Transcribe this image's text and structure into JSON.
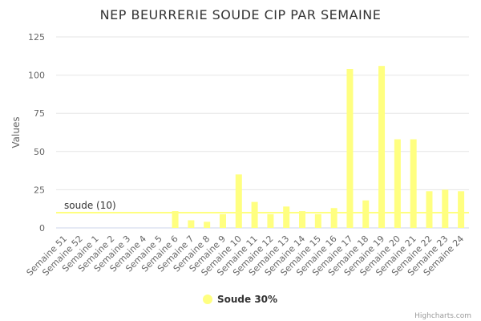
{
  "chart_data": {
    "type": "bar",
    "title": "NEP BEURRERIE SOUDE CIP PAR SEMAINE",
    "xlabel": "",
    "ylabel": "Values",
    "ylim": [
      0,
      125
    ],
    "yticks": [
      0,
      25,
      50,
      75,
      100,
      125
    ],
    "grid": true,
    "legend_position": "bottom-center",
    "categories": [
      "Semaine 51",
      "Semaine 52",
      "Semaine 1",
      "Semaine 2",
      "Semaine 3",
      "Semaine 4",
      "Semaine 5",
      "Semaine 6",
      "Semaine 7",
      "Semaine 8",
      "Semaine 9",
      "Semaine 10",
      "Semaine 11",
      "Semaine 12",
      "Semaine 13",
      "Semaine 14",
      "Semaine 15",
      "Semaine 16",
      "Semaine 17",
      "Semaine 18",
      "Semaine 19",
      "Semaine 20",
      "Semaine 21",
      "Semaine 22",
      "Semaine 23",
      "Semaine 24"
    ],
    "series": [
      {
        "name": "Soude 30%",
        "color": "#ffff80",
        "values": [
          0,
          0,
          0,
          0,
          0,
          0,
          0,
          11,
          5,
          4,
          9,
          35,
          17,
          9,
          14,
          11,
          9,
          13,
          104,
          18,
          106,
          58,
          58,
          24,
          25,
          24
        ]
      }
    ],
    "plot_lines": [
      {
        "label": "soude (10)",
        "value": 10,
        "color": "#ffff80"
      }
    ],
    "credits": "Highcharts.com"
  }
}
